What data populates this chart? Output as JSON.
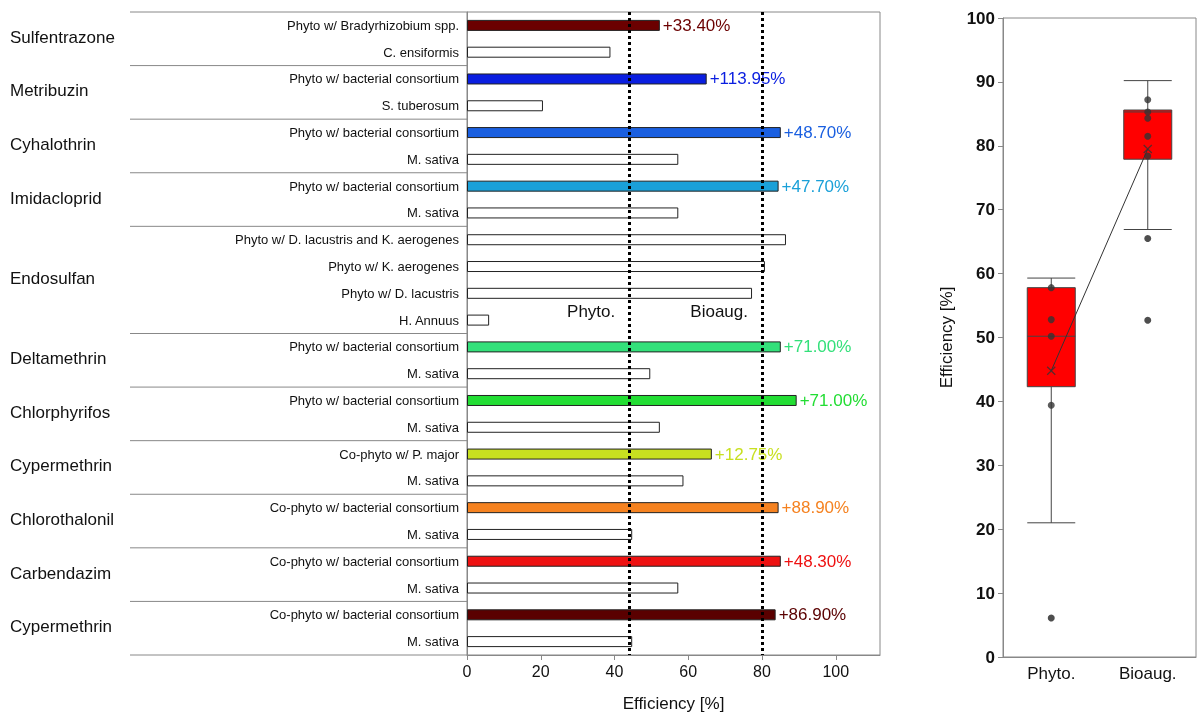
{
  "chart_data": [
    {
      "type": "bar",
      "orientation": "horizontal",
      "xlabel": "Efficiency [%]",
      "xlim": [
        0,
        112
      ],
      "xticks": [
        0,
        20,
        40,
        60,
        80,
        100
      ],
      "grid": false,
      "categories": [
        "Phyto w/ Bradyrhizobium spp.",
        "C. ensiformis",
        "Phyto w/ bacterial consortium",
        "S. tuberosum",
        "Phyto w/ bacterial consortium",
        "M. sativa",
        "Phyto w/ bacterial consortium",
        "M. sativa",
        "Phyto w/ D. lacustris and K. aerogenes",
        "Phyto w/ K. aerogenes",
        "Phyto w/ D. lacustris",
        "H. Annuus",
        "Phyto w/ bacterial consortium",
        "M. sativa",
        "Phyto w/ bacterial consortium",
        "M. sativa",
        "Co-phyto w/ P. major",
        "M. sativa",
        "Co-phyto w/ bacterial consortium",
        "M. sativa",
        "Co-phyto w/ bacterial consortium",
        "M. sativa",
        "Co-phyto w/ bacterial consortium",
        "M. sativa"
      ],
      "values": [
        52.3,
        38.9,
        65,
        20.6,
        85.1,
        57.3,
        84.5,
        57.3,
        86.5,
        80.8,
        77.3,
        6,
        85.1,
        49.7,
        89.4,
        52.3,
        66.4,
        58.7,
        84.5,
        44.8,
        85.1,
        57.3,
        83.7,
        44.8
      ],
      "colors": [
        "#6b0000",
        "#ffffff",
        "#0a1ee0",
        "#ffffff",
        "#1a5fe0",
        "#ffffff",
        "#1aa0d8",
        "#ffffff",
        "#ffffff",
        "#ffffff",
        "#ffffff",
        "#ffffff",
        "#33e07a",
        "#ffffff",
        "#22dd33",
        "#ffffff",
        "#c8e020",
        "#ffffff",
        "#f58220",
        "#ffffff",
        "#ee1111",
        "#ffffff",
        "#5a0000",
        "#ffffff"
      ],
      "annotations": [
        "Sulfentrazone",
        "Metribuzin",
        "Cyhalothrin",
        "Imidacloprid",
        "Endosulfan",
        "Deltamethrin",
        "Chlorphyrifos",
        "Cypermethrin",
        "Chlorothalonil",
        "Carbendazim",
        "Cypermethrin",
        "+33.40%",
        "+113.95%",
        "+48.70%",
        "+47.70%",
        "+71.00%",
        "+71.00%",
        "+12.75%",
        "+88.90%",
        "+48.30%",
        "+86.90%"
      ],
      "ref_lines": [
        {
          "axis": "x",
          "value": 44,
          "label": "Phyto.",
          "color": "#000000",
          "line_style": "dotted"
        },
        {
          "axis": "x",
          "value": 80,
          "label": "Bioaug.",
          "color": "#000000",
          "line_style": "dotted"
        }
      ]
    },
    {
      "type": "box",
      "categories": [
        "Phyto.",
        "Bioaug."
      ],
      "ylabel": "Efficiency [%]",
      "ylim": [
        0,
        100
      ],
      "yticks": [
        0,
        10,
        20,
        30,
        40,
        50,
        60,
        70,
        80,
        90,
        100
      ],
      "grid": false,
      "series": [
        {
          "type": "box",
          "color": "#ff0000",
          "boxes": [
            {
              "low": 21,
              "q1": 42.3,
              "median": 50.2,
              "q3": 57.8,
              "high": 59.3,
              "mean": 44.8,
              "outliers": [
                6.1
              ]
            },
            {
              "low": 66.9,
              "q1": 77.9,
              "median": 85.3,
              "q3": 85.6,
              "high": 90.2,
              "mean": 79.5,
              "outliers": [
                65.5,
                52.7
              ]
            }
          ]
        },
        {
          "type": "scatter",
          "color": "#333333",
          "marker": "circle",
          "x": [
            "Phyto.",
            "Phyto.",
            "Phyto.",
            "Phyto.",
            "Bioaug.",
            "Bioaug.",
            "Bioaug.",
            "Bioaug.",
            "Bioaug."
          ],
          "values": [
            57.8,
            52.8,
            50.2,
            39.4,
            87.2,
            85.3,
            84.3,
            81.5,
            78.4
          ]
        },
        {
          "type": "line",
          "color": "#333333",
          "marker": "none",
          "x": [
            "Phyto.",
            "Bioaug."
          ],
          "values": [
            44.8,
            79.5
          ]
        }
      ]
    }
  ]
}
